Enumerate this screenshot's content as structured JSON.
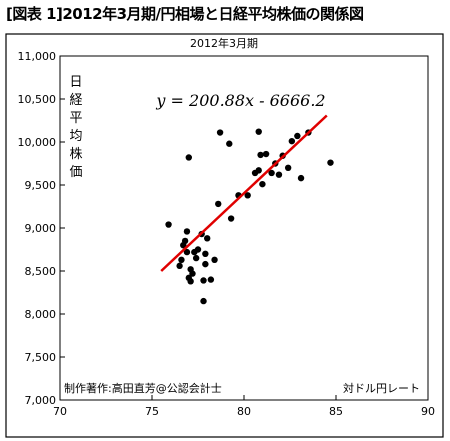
{
  "figure_title": "[図表 1]2012年3月期/円相場と日経平均株価の関係図",
  "chart_data": {
    "type": "scatter",
    "title": "2012年3月期",
    "ylabel": "日経平均株価",
    "xlabel": "対ドル円レート",
    "credit": "制作著作:高田直芳@公認会計士",
    "equation": "y = 200.88x - 6666.2",
    "trendline": {
      "slope": 200.88,
      "intercept": -6666.2,
      "x_range": [
        75.5,
        84.5
      ],
      "color": "#e00000"
    },
    "xlim": [
      70,
      90
    ],
    "ylim": [
      7000,
      11000
    ],
    "x_ticks": [
      70,
      75,
      80,
      85,
      90
    ],
    "x_tick_labels": [
      "70",
      "75",
      "80",
      "85",
      "90"
    ],
    "y_ticks": [
      7000,
      7500,
      8000,
      8500,
      9000,
      9500,
      10000,
      10500,
      11000
    ],
    "y_tick_labels": [
      "7,000",
      "7,500",
      "8,000",
      "8,500",
      "9,000",
      "9,500",
      "10,000",
      "10,500",
      "11,000"
    ],
    "grid": false,
    "point_color": "#000000",
    "points": [
      [
        75.9,
        9040
      ],
      [
        76.5,
        8560
      ],
      [
        76.6,
        8630
      ],
      [
        76.7,
        8800
      ],
      [
        76.8,
        8850
      ],
      [
        76.9,
        8720
      ],
      [
        76.9,
        8960
      ],
      [
        77.0,
        9820
      ],
      [
        77.0,
        8420
      ],
      [
        77.1,
        8380
      ],
      [
        77.1,
        8520
      ],
      [
        77.2,
        8470
      ],
      [
        77.3,
        8720
      ],
      [
        77.4,
        8650
      ],
      [
        77.5,
        8750
      ],
      [
        77.7,
        8930
      ],
      [
        77.8,
        8150
      ],
      [
        77.8,
        8390
      ],
      [
        77.9,
        8580
      ],
      [
        77.9,
        8700
      ],
      [
        78.0,
        8880
      ],
      [
        78.2,
        8400
      ],
      [
        78.4,
        8630
      ],
      [
        78.6,
        9280
      ],
      [
        78.7,
        10110
      ],
      [
        79.2,
        9980
      ],
      [
        79.3,
        9110
      ],
      [
        79.7,
        9380
      ],
      [
        80.2,
        9380
      ],
      [
        80.6,
        9640
      ],
      [
        80.8,
        10120
      ],
      [
        80.8,
        9670
      ],
      [
        80.9,
        9850
      ],
      [
        81.0,
        9510
      ],
      [
        81.2,
        9860
      ],
      [
        81.5,
        9640
      ],
      [
        81.7,
        9750
      ],
      [
        81.9,
        9620
      ],
      [
        82.1,
        9840
      ],
      [
        82.4,
        9700
      ],
      [
        82.6,
        10010
      ],
      [
        82.9,
        10070
      ],
      [
        83.1,
        9580
      ],
      [
        83.5,
        10110
      ],
      [
        84.7,
        9760
      ]
    ]
  }
}
